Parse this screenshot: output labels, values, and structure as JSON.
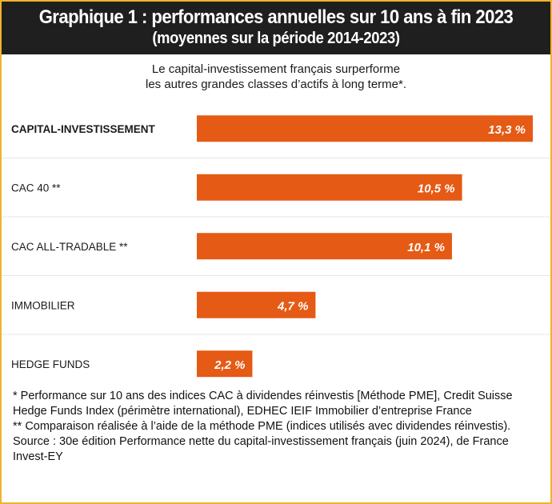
{
  "header": {
    "title": "Graphique 1 : performances annuelles sur 10 ans à fin 2023",
    "subtitle": "(moyennes sur la période 2014-2023)"
  },
  "lead": {
    "line1": "Le capital-investissement français surperforme",
    "line2": "les autres grandes classes d’actifs à long terme*."
  },
  "chart_data": {
    "type": "bar",
    "orientation": "horizontal",
    "categories": [
      "CAPITAL-INVESTISSEMENT",
      "CAC 40 **",
      "CAC ALL-TRADABLE **",
      "IMMOBILIER",
      "HEDGE FUNDS"
    ],
    "values": [
      13.3,
      10.5,
      10.1,
      4.7,
      2.2
    ],
    "value_labels": [
      "13,3 %",
      "10,5 %",
      "10,1 %",
      "4,7 %",
      "2,2 %"
    ],
    "highlight_category": "CAPITAL-INVESTISSEMENT",
    "xlim": [
      0,
      13.3
    ],
    "grid": false,
    "bar_color": "#e55a14",
    "label_color": "#ffffff"
  },
  "footnotes": [
    "* Performance sur 10 ans des indices CAC à dividendes réinvestis [Méthode PME], Credit Suisse Hedge Funds Index (périmètre international), EDHEC IEIF Immobilier d’entreprise France",
    "** Comparaison réalisée à l’aide de la méthode PME (indices utilisés avec dividendes réinvestis).",
    "Source : 30e édition Performance nette du capital-investissement français (juin 2024), de France Invest-EY"
  ],
  "colors": {
    "border": "#f0b429",
    "header_bg": "#1f1f1f",
    "separator": "#e6e6e6"
  }
}
